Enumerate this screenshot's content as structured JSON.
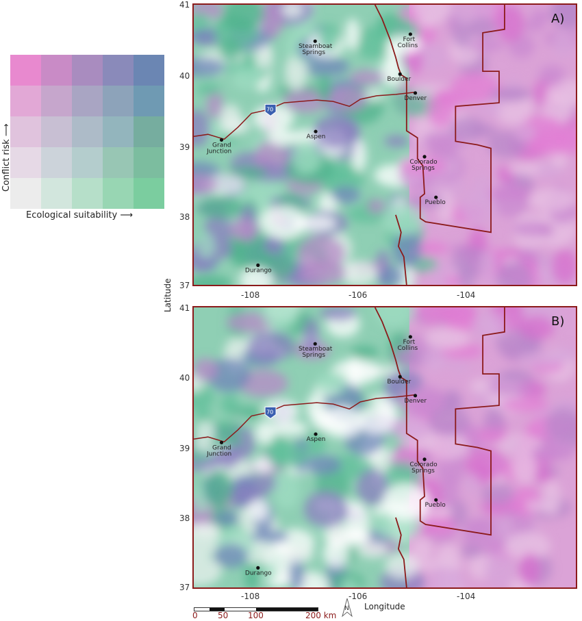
{
  "legend": {
    "y_label": "Conflict risk",
    "x_label": "Ecological suitability",
    "arrow_y": "↑",
    "arrow_x": "→",
    "colors": [
      [
        "#e889cf",
        "#c98bc6",
        "#a98cbf",
        "#8a8aba",
        "#6b86b3"
      ],
      [
        "#e2a8d6",
        "#c6a6cc",
        "#a9a5c3",
        "#8da3ba",
        "#6f9ab3"
      ],
      [
        "#e0c3dd",
        "#c8bfd3",
        "#adbbc8",
        "#93b5bd",
        "#76ad9f"
      ],
      [
        "#e6d9e6",
        "#ccd3da",
        "#b4cdcd",
        "#98c6b4",
        "#7cbd9f"
      ],
      [
        "#ececec",
        "#d2e6dd",
        "#b6dfc9",
        "#98d6b3",
        "#7bcd9f"
      ]
    ]
  },
  "axes": {
    "y_title": "Latitude",
    "x_title": "Longitude",
    "lat_ticks": [
      "41",
      "40",
      "39",
      "38",
      "37"
    ],
    "lon_ticks": [
      "-108",
      "-106",
      "-104"
    ]
  },
  "panels": [
    {
      "label": "A)"
    },
    {
      "label": "B)"
    }
  ],
  "cities": [
    {
      "name": "Steamboat",
      "name2": "Springs",
      "lon": -106.83,
      "lat": 40.48
    },
    {
      "name": "Fort",
      "name2": "Collins",
      "lon": -105.08,
      "lat": 40.58
    },
    {
      "name": "Boulder",
      "name2": "",
      "lon": -105.27,
      "lat": 40.01
    },
    {
      "name": "Denver",
      "name2": "",
      "lon": -104.99,
      "lat": 39.74
    },
    {
      "name": "Grand",
      "name2": "Junction",
      "lon": -108.55,
      "lat": 39.07
    },
    {
      "name": "Aspen",
      "name2": "",
      "lon": -106.82,
      "lat": 39.19
    },
    {
      "name": "Colorado",
      "name2": "Springs",
      "lon": -104.82,
      "lat": 38.83
    },
    {
      "name": "Pueblo",
      "name2": "",
      "lon": -104.61,
      "lat": 38.25
    },
    {
      "name": "Durango",
      "name2": "",
      "lon": -107.88,
      "lat": 37.28
    }
  ],
  "highway": {
    "label": "70"
  },
  "scale_bar": {
    "labels": [
      "0",
      "50",
      "100",
      "200 km"
    ]
  },
  "north_arrow": {
    "label": "N"
  }
}
